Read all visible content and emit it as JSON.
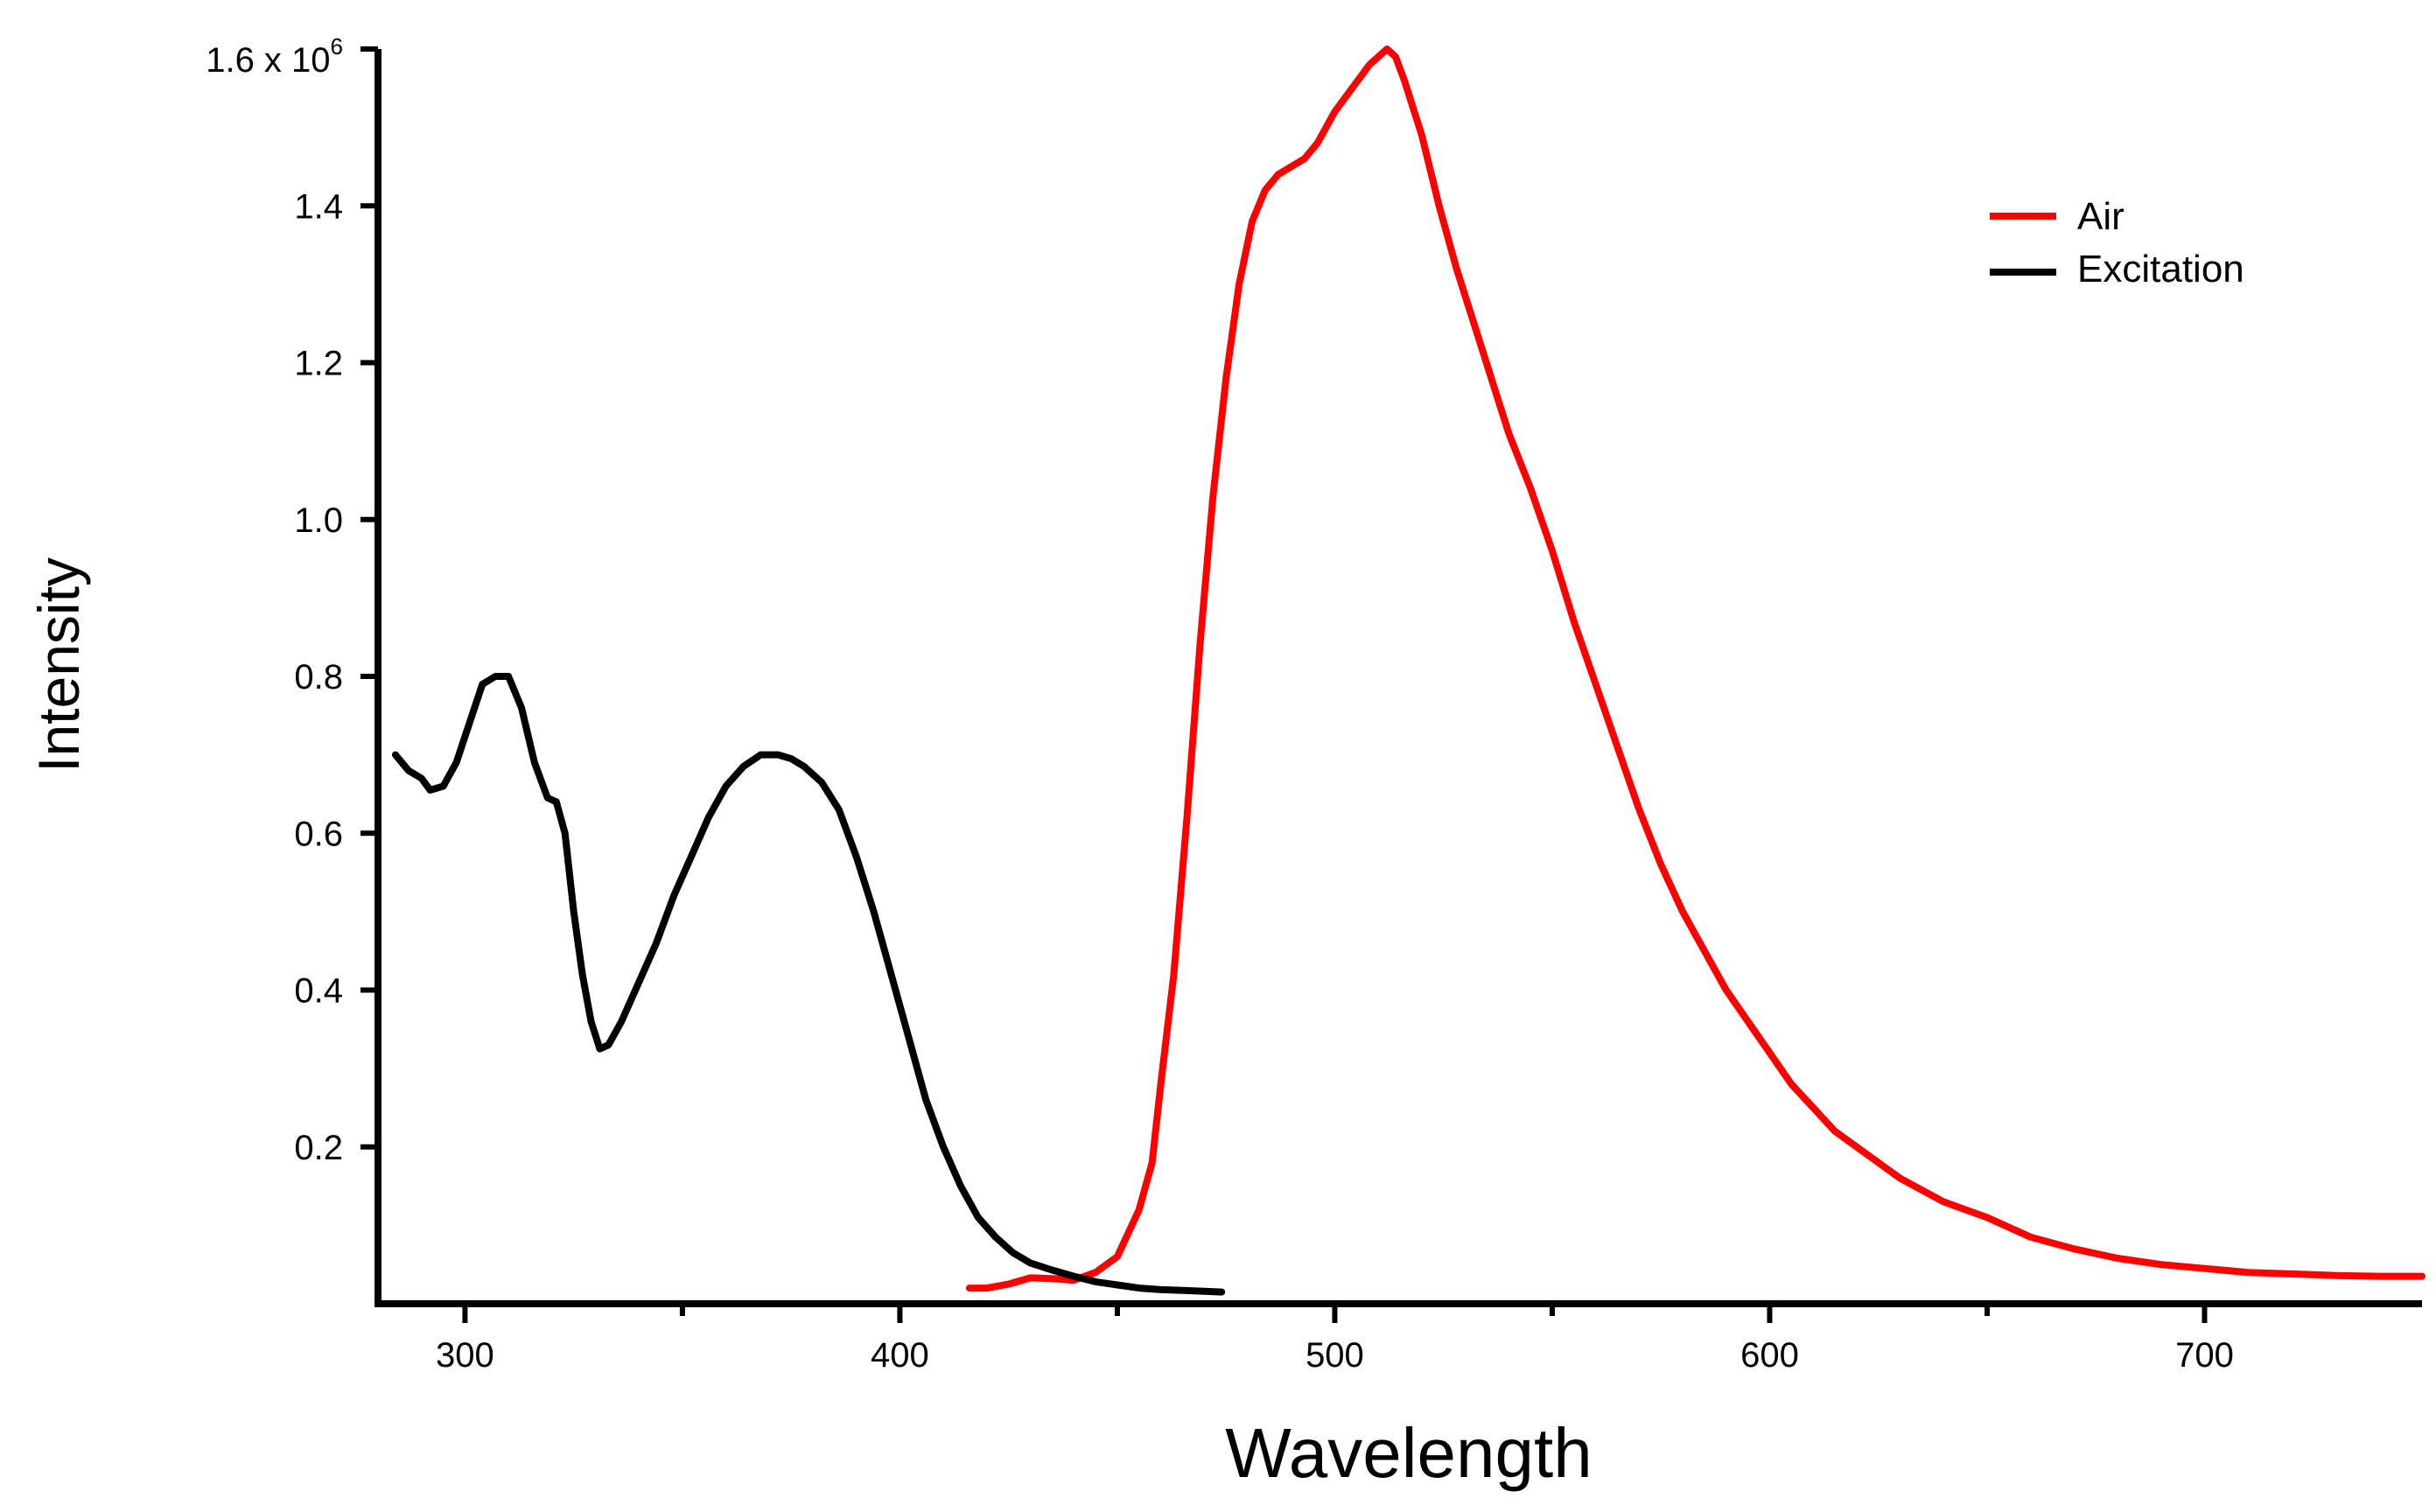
{
  "chart_data": {
    "type": "line",
    "xlabel": "Wavelength",
    "ylabel": "Intensity",
    "xlim": [
      280,
      750
    ],
    "ylim": [
      0,
      1.6
    ],
    "y_scale_label": "1.6 x 10",
    "y_scale_exponent": "6",
    "x_ticks": [
      300,
      400,
      500,
      600,
      700
    ],
    "x_tick_labels": [
      "300",
      "400",
      "500",
      "600",
      "700"
    ],
    "y_ticks": [
      0.2,
      0.4,
      0.6,
      0.8,
      1.0,
      1.2,
      1.4
    ],
    "y_tick_labels": [
      "0.2",
      "0.4",
      "0.6",
      "0.8",
      "1.0",
      "1.2",
      "1.4"
    ],
    "legend_position": "top-right",
    "series": [
      {
        "name": "Air",
        "color": "#ff0000",
        "x": [
          416,
          420,
          425,
          430,
          435,
          440,
          445,
          450,
          455,
          458,
          460,
          463,
          466,
          469,
          472,
          475,
          478,
          481,
          484,
          487,
          490,
          493,
          496,
          500,
          504,
          508,
          510,
          512,
          514,
          516,
          520,
          524,
          528,
          532,
          536,
          540,
          545,
          550,
          555,
          560,
          565,
          570,
          575,
          580,
          585,
          590,
          595,
          600,
          605,
          610,
          615,
          620,
          630,
          640,
          650,
          660,
          670,
          680,
          690,
          700,
          710,
          720,
          730,
          740,
          750
        ],
        "y": [
          0.02,
          0.02,
          0.025,
          0.033,
          0.032,
          0.03,
          0.04,
          0.06,
          0.12,
          0.18,
          0.28,
          0.42,
          0.62,
          0.84,
          1.03,
          1.18,
          1.3,
          1.38,
          1.42,
          1.44,
          1.45,
          1.46,
          1.48,
          1.52,
          1.55,
          1.58,
          1.59,
          1.6,
          1.59,
          1.56,
          1.49,
          1.4,
          1.32,
          1.25,
          1.18,
          1.11,
          1.04,
          0.96,
          0.87,
          0.79,
          0.71,
          0.63,
          0.56,
          0.5,
          0.45,
          0.4,
          0.36,
          0.32,
          0.28,
          0.25,
          0.22,
          0.2,
          0.16,
          0.13,
          0.11,
          0.085,
          0.07,
          0.058,
          0.05,
          0.045,
          0.04,
          0.038,
          0.036,
          0.035,
          0.035
        ]
      },
      {
        "name": "Excitation",
        "color": "#000000",
        "x": [
          284,
          287,
          290,
          292,
          295,
          298,
          301,
          304,
          307,
          310,
          313,
          316,
          319,
          321,
          323,
          325,
          327,
          329,
          331,
          333,
          336,
          340,
          344,
          348,
          352,
          356,
          360,
          364,
          368,
          372,
          375,
          378,
          382,
          386,
          390,
          394,
          398,
          402,
          406,
          410,
          414,
          418,
          422,
          426,
          430,
          435,
          440,
          445,
          450,
          455,
          460,
          465,
          470,
          474
        ],
        "y": [
          0.7,
          0.68,
          0.67,
          0.655,
          0.66,
          0.69,
          0.74,
          0.79,
          0.8,
          0.8,
          0.76,
          0.69,
          0.645,
          0.64,
          0.6,
          0.5,
          0.42,
          0.36,
          0.325,
          0.33,
          0.36,
          0.41,
          0.46,
          0.52,
          0.57,
          0.62,
          0.66,
          0.685,
          0.7,
          0.7,
          0.695,
          0.685,
          0.665,
          0.63,
          0.57,
          0.5,
          0.42,
          0.34,
          0.26,
          0.2,
          0.15,
          0.11,
          0.085,
          0.065,
          0.052,
          0.043,
          0.035,
          0.028,
          0.024,
          0.02,
          0.018,
          0.017,
          0.016,
          0.015
        ]
      }
    ]
  }
}
